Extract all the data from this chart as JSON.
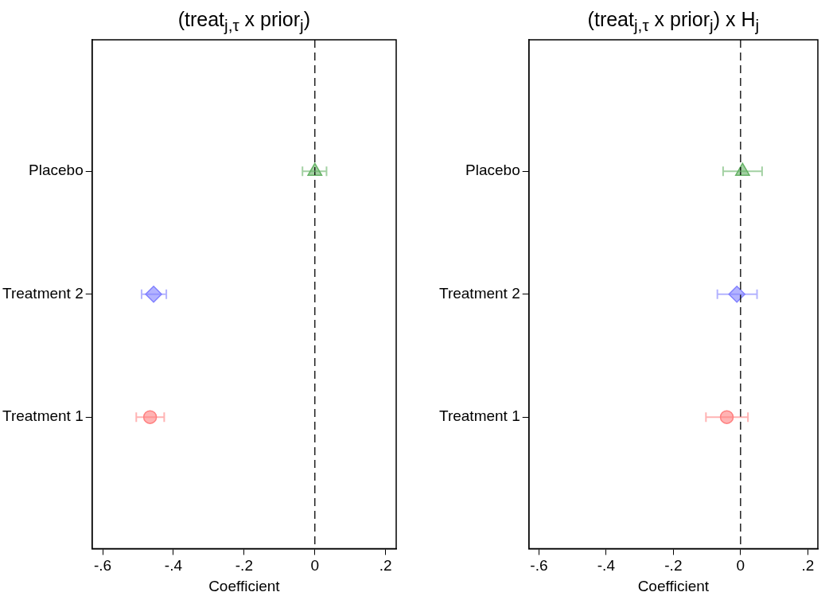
{
  "chart_data": [
    {
      "type": "scatter",
      "orientation": "horizontal",
      "title": "(treat$_{j,τ}$ x prior$_{j}$)",
      "xlabel": "Coefficient",
      "categories": [
        "Placebo",
        "Treatment 2",
        "Treatment 1"
      ],
      "series": [
        {
          "color": "#66b266",
          "marker": "triangle",
          "values": [
            0.0,
            null,
            null
          ],
          "errors": [
            [
              -0.035,
              0.033
            ],
            null,
            null
          ]
        },
        {
          "color": "#8080ff",
          "marker": "diamond",
          "values": [
            null,
            -0.456,
            null
          ],
          "errors": [
            null,
            [
              -0.49,
              -0.42
            ],
            null
          ]
        },
        {
          "color": "#ff8080",
          "marker": "circle",
          "values": [
            null,
            null,
            -0.466
          ],
          "errors": [
            null,
            null,
            [
              -0.505,
              -0.426
            ]
          ]
        }
      ],
      "xlim": [
        -0.63,
        0.23
      ],
      "xticks": [
        {
          "value": -0.6,
          "label": "-.6"
        },
        {
          "value": -0.4,
          "label": "-.4"
        },
        {
          "value": -0.2,
          "label": "-.2"
        },
        0,
        {
          "value": 0.2,
          "label": ".2"
        }
      ],
      "ref_lines": [
        {
          "axis": "x",
          "value": 0,
          "line_style": "dashed",
          "color": "#000000"
        }
      ],
      "grid": false,
      "legend": false
    },
    {
      "type": "scatter",
      "orientation": "horizontal",
      "title": "(treat$_{j,τ}$ x prior$_{j}$) x H$_{j}$",
      "xlabel": "Coefficient",
      "categories": [
        "Placebo",
        "Treatment 2",
        "Treatment 1"
      ],
      "series": [
        {
          "color": "#66b266",
          "marker": "triangle",
          "values": [
            0.006,
            null,
            null
          ],
          "errors": [
            [
              -0.052,
              0.064
            ],
            null,
            null
          ]
        },
        {
          "color": "#8080ff",
          "marker": "diamond",
          "values": [
            null,
            -0.011,
            null
          ],
          "errors": [
            null,
            [
              -0.069,
              0.049
            ],
            null
          ]
        },
        {
          "color": "#ff8080",
          "marker": "circle",
          "values": [
            null,
            null,
            -0.041
          ],
          "errors": [
            null,
            null,
            [
              -0.103,
              0.022
            ]
          ]
        }
      ],
      "xlim": [
        -0.63,
        0.23
      ],
      "xticks": [
        {
          "value": -0.6,
          "label": "-.6"
        },
        {
          "value": -0.4,
          "label": "-.4"
        },
        {
          "value": -0.2,
          "label": "-.2"
        },
        0,
        {
          "value": 0.2,
          "label": ".2"
        }
      ],
      "ref_lines": [
        {
          "axis": "x",
          "value": 0,
          "line_style": "dashed",
          "color": "#000000"
        }
      ],
      "grid": false,
      "legend": false
    }
  ]
}
